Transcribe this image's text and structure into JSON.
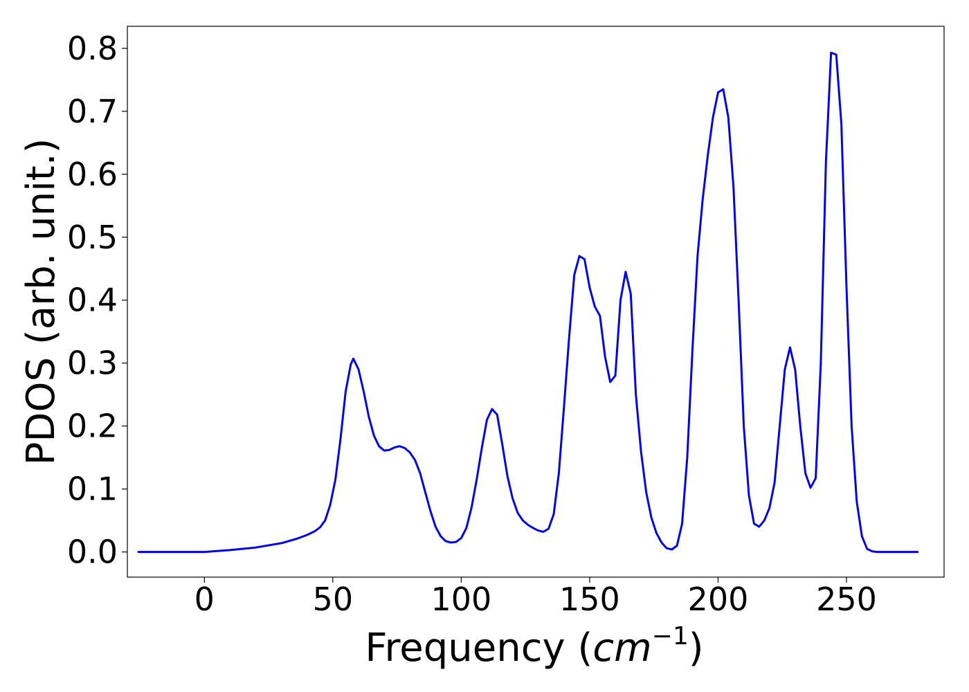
{
  "chart_data": {
    "type": "line",
    "title": "",
    "xlabel": {
      "prefix": "Frequency (",
      "var": "cm",
      "sup": "−1",
      "suffix": ")"
    },
    "ylabel": "PDOS (arb. unit.)",
    "xlim": [
      -30,
      288
    ],
    "ylim": [
      -0.04,
      0.835
    ],
    "xticks": [
      0,
      50,
      100,
      150,
      200,
      250
    ],
    "yticks": [
      0.0,
      0.1,
      0.2,
      0.3,
      0.4,
      0.5,
      0.6,
      0.7,
      0.8
    ],
    "xtick_labels": [
      "0",
      "50",
      "100",
      "150",
      "200",
      "250"
    ],
    "ytick_labels": [
      "0.0",
      "0.1",
      "0.2",
      "0.3",
      "0.4",
      "0.5",
      "0.6",
      "0.7",
      "0.8"
    ],
    "grid": false,
    "legend": null,
    "line_color": "#0000ee",
    "series": [
      {
        "x": [
          -26,
          0,
          10,
          20,
          30,
          36,
          40,
          43,
          45,
          47,
          49,
          51,
          53,
          55,
          57,
          58,
          60,
          62,
          64,
          66,
          68,
          70,
          72,
          74,
          76,
          78,
          80,
          82,
          84,
          86,
          88,
          90,
          92,
          94,
          96,
          98,
          100,
          102,
          104,
          106,
          108,
          110,
          112,
          114,
          116,
          118,
          120,
          122,
          124,
          126,
          128,
          130,
          132,
          134,
          136,
          138,
          140,
          142,
          144,
          146,
          148,
          150,
          152,
          154,
          156,
          158,
          160,
          162,
          164,
          166,
          168,
          170,
          172,
          174,
          176,
          178,
          180,
          182,
          184,
          186,
          188,
          190,
          192,
          194,
          196,
          198,
          200,
          202,
          204,
          206,
          208,
          210,
          212,
          214,
          216,
          218,
          220,
          222,
          224,
          226,
          228,
          230,
          232,
          234,
          236,
          238,
          240,
          242,
          244,
          246,
          248,
          250,
          252,
          254,
          256,
          258,
          260,
          262,
          278
        ],
        "y": [
          0.0,
          0.0,
          0.003,
          0.007,
          0.014,
          0.021,
          0.027,
          0.033,
          0.039,
          0.05,
          0.075,
          0.115,
          0.18,
          0.255,
          0.298,
          0.307,
          0.29,
          0.255,
          0.215,
          0.185,
          0.168,
          0.161,
          0.162,
          0.166,
          0.168,
          0.165,
          0.158,
          0.146,
          0.125,
          0.095,
          0.065,
          0.04,
          0.025,
          0.017,
          0.015,
          0.016,
          0.022,
          0.038,
          0.07,
          0.115,
          0.165,
          0.21,
          0.227,
          0.218,
          0.17,
          0.12,
          0.085,
          0.062,
          0.05,
          0.043,
          0.038,
          0.034,
          0.032,
          0.037,
          0.06,
          0.125,
          0.23,
          0.34,
          0.44,
          0.47,
          0.465,
          0.42,
          0.39,
          0.375,
          0.31,
          0.27,
          0.28,
          0.4,
          0.445,
          0.41,
          0.25,
          0.16,
          0.095,
          0.055,
          0.03,
          0.015,
          0.006,
          0.004,
          0.01,
          0.045,
          0.15,
          0.32,
          0.47,
          0.56,
          0.63,
          0.69,
          0.73,
          0.735,
          0.69,
          0.58,
          0.4,
          0.2,
          0.09,
          0.045,
          0.04,
          0.05,
          0.07,
          0.11,
          0.2,
          0.29,
          0.325,
          0.29,
          0.2,
          0.125,
          0.102,
          0.117,
          0.3,
          0.62,
          0.793,
          0.79,
          0.68,
          0.42,
          0.2,
          0.08,
          0.025,
          0.005,
          0.001,
          0.0,
          0.0
        ]
      }
    ]
  }
}
